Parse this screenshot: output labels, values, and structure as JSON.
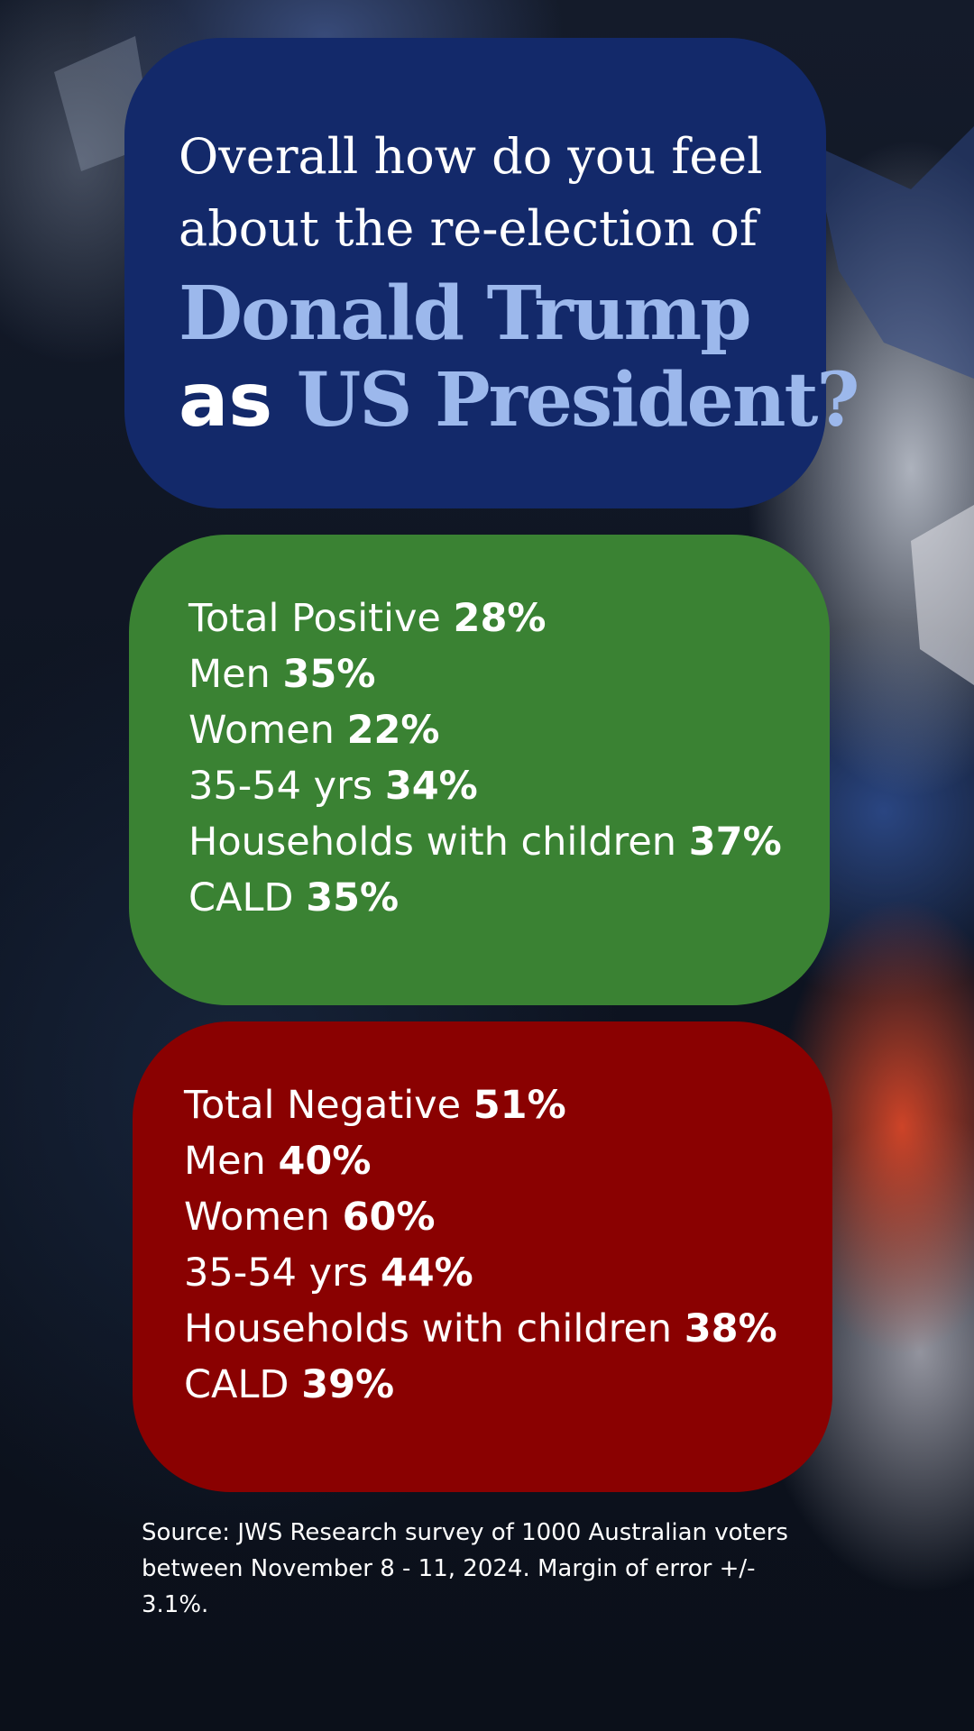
{
  "question": {
    "line1": "Overall how do you feel",
    "line2": "about the re-election of",
    "name": "Donald Trump",
    "as_word": "as",
    "office": "US President?"
  },
  "positive": {
    "color": "#3a8233",
    "rows": [
      {
        "label": "Total Positive",
        "value": "28%"
      },
      {
        "label": "Men",
        "value": "35%"
      },
      {
        "label": "Women",
        "value": "22%"
      },
      {
        "label": "35-54 yrs",
        "value": "34%"
      },
      {
        "label": "Households with children",
        "value": "37%"
      },
      {
        "label": "CALD",
        "value": "35%"
      }
    ]
  },
  "negative": {
    "color": "#8a0101",
    "rows": [
      {
        "label": "Total Negative",
        "value": "51%"
      },
      {
        "label": "Men",
        "value": "40%"
      },
      {
        "label": "Women",
        "value": "60%"
      },
      {
        "label": "35-54 yrs",
        "value": "44%"
      },
      {
        "label": "Households with children",
        "value": "38%"
      },
      {
        "label": "CALD",
        "value": "39%"
      }
    ]
  },
  "source": {
    "line1": "Source: JWS Research survey of 1000 Australian voters",
    "line2": "between November 8 - 11, 2024. Margin of error +/- 3.1%."
  },
  "background": {
    "image": "american-flag-fabric",
    "question_card_color": "#13296a",
    "accent_text_color": "#9cb8ec"
  }
}
